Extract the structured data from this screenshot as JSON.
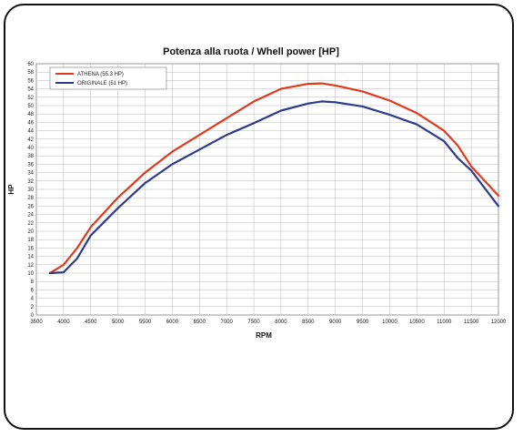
{
  "chart_data": {
    "type": "line",
    "title": "Potenza alla ruota / Whell power [HP]",
    "xlabel": "RPM",
    "ylabel": "HP",
    "xlim": [
      3500,
      12000
    ],
    "ylim": [
      0,
      60
    ],
    "x_ticks": [
      3500,
      4000,
      4500,
      5000,
      5500,
      6000,
      6500,
      7000,
      7500,
      8000,
      8500,
      9000,
      9500,
      10000,
      10500,
      11000,
      11500,
      12000
    ],
    "y_ticks": [
      0,
      2,
      4,
      6,
      8,
      10,
      12,
      14,
      16,
      18,
      20,
      22,
      24,
      26,
      28,
      30,
      32,
      34,
      36,
      38,
      40,
      42,
      44,
      46,
      48,
      50,
      52,
      54,
      56,
      58,
      60
    ],
    "grid": true,
    "legend_position": "top-left",
    "series": [
      {
        "name": "ATHENA (55.3 HP)",
        "color": "#e03a1e",
        "x": [
          3750,
          4000,
          4250,
          4500,
          5000,
          5500,
          6000,
          6500,
          7000,
          7500,
          8000,
          8500,
          8750,
          9000,
          9500,
          10000,
          10500,
          11000,
          11250,
          11500,
          12000
        ],
        "y": [
          10,
          12,
          16,
          21,
          28,
          34,
          39,
          43,
          47,
          51,
          54,
          55.2,
          55.3,
          54.8,
          53.4,
          51.2,
          48.2,
          44,
          40.5,
          35.5,
          28.5
        ]
      },
      {
        "name": "ORIGINALE (51 HP)",
        "color": "#2e3a8c",
        "x": [
          3750,
          4000,
          4250,
          4500,
          5000,
          5500,
          6000,
          6500,
          7000,
          7500,
          8000,
          8500,
          8750,
          9000,
          9500,
          10000,
          10500,
          11000,
          11250,
          11500,
          12000
        ],
        "y": [
          10,
          10.2,
          13.5,
          19,
          25.5,
          31.5,
          36,
          39.5,
          43,
          45.8,
          48.8,
          50.5,
          51,
          50.8,
          49.8,
          47.8,
          45.5,
          41.5,
          37.5,
          34.5,
          26
        ]
      }
    ]
  }
}
